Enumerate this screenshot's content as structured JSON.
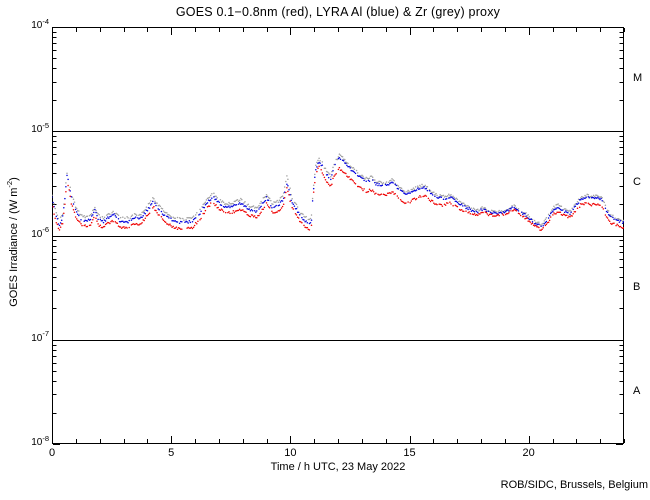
{
  "chart_data": {
    "type": "scatter",
    "title": "GOES 0.1−0.8nm (red), LYRA Al (blue) & Zr (grey) proxy",
    "xlabel": "Time / h UTC, 23 May 2022",
    "ylabel": "GOES Irradiance / (W m^-2)",
    "ylabel_parts": {
      "pre": "GOES Irradiance / (W m",
      "sup": "-2",
      "post": ")"
    },
    "credit": "ROB/SIDC, Brussels, Belgium",
    "x_range": [
      0,
      24
    ],
    "x_major_ticks": [
      0,
      5,
      10,
      15,
      20
    ],
    "x_minor_step": 1,
    "y_scale": "log10",
    "y_range_exp": [
      -8,
      -4
    ],
    "y_ticks": [
      {
        "base": "10",
        "exp": "-4",
        "log": -4
      },
      {
        "base": "10",
        "exp": "-5",
        "log": -5
      },
      {
        "base": "10",
        "exp": "-6",
        "log": -6
      },
      {
        "base": "10",
        "exp": "-7",
        "log": -7
      },
      {
        "base": "10",
        "exp": "-8",
        "log": -8
      }
    ],
    "grid_hlines_log": [
      -5,
      -6,
      -7
    ],
    "flare_class_labels": [
      {
        "label": "M",
        "log_center": -4.5
      },
      {
        "label": "C",
        "log_center": -5.5
      },
      {
        "label": "B",
        "log_center": -6.5
      },
      {
        "label": "A",
        "log_center": -7.5
      }
    ],
    "values_unit": "1e-6 W m-2",
    "hours": [
      0,
      0.15,
      0.3,
      0.45,
      0.55,
      0.62,
      0.7,
      0.82,
      1.0,
      1.2,
      1.45,
      1.62,
      1.8,
      1.95,
      2.15,
      2.4,
      2.6,
      2.85,
      3.2,
      3.5,
      3.7,
      4.0,
      4.25,
      4.5,
      4.8,
      5.2,
      5.55,
      5.9,
      6.2,
      6.5,
      6.75,
      7.0,
      7.3,
      7.6,
      7.9,
      8.3,
      8.6,
      9.0,
      9.25,
      9.5,
      9.7,
      9.87,
      10.05,
      10.25,
      10.5,
      10.75,
      10.88,
      10.96,
      11.05,
      11.2,
      11.35,
      11.5,
      11.7,
      11.85,
      12.05,
      12.2,
      12.5,
      12.75,
      13.0,
      13.2,
      13.4,
      13.6,
      13.85,
      14.1,
      14.3,
      14.55,
      14.8,
      15.0,
      15.3,
      15.6,
      15.85,
      16.1,
      16.4,
      16.7,
      17.0,
      17.3,
      17.6,
      17.85,
      18.1,
      18.35,
      18.7,
      19.0,
      19.35,
      19.6,
      19.9,
      20.2,
      20.55,
      20.8,
      21.05,
      21.25,
      21.5,
      21.75,
      22.0,
      22.2,
      22.4,
      22.65,
      22.9,
      23.1,
      23.25,
      23.45,
      23.7,
      24.0
    ],
    "series": [
      {
        "name": "LYRA Zr proxy",
        "color_name": "grey",
        "color": "#a0a0a0",
        "values": [
          2.5,
          1.75,
          1.38,
          1.63,
          2.6,
          4.05,
          3.5,
          2.45,
          1.88,
          1.58,
          1.5,
          1.57,
          1.88,
          1.55,
          1.48,
          1.62,
          1.7,
          1.5,
          1.47,
          1.6,
          1.57,
          1.9,
          2.3,
          1.9,
          1.62,
          1.47,
          1.43,
          1.5,
          1.75,
          2.22,
          2.58,
          2.22,
          2.0,
          2.06,
          2.22,
          1.93,
          1.85,
          2.5,
          2.02,
          2.14,
          2.45,
          3.85,
          2.38,
          1.96,
          1.58,
          1.44,
          1.42,
          2.8,
          4.5,
          5.55,
          4.95,
          4.2,
          3.7,
          4.9,
          5.9,
          5.55,
          4.7,
          4.15,
          3.72,
          3.5,
          3.65,
          3.28,
          3.18,
          3.28,
          3.45,
          2.92,
          2.65,
          2.7,
          2.9,
          3.06,
          2.74,
          2.47,
          2.36,
          2.47,
          2.2,
          1.98,
          1.82,
          1.74,
          1.86,
          1.71,
          1.69,
          1.71,
          1.95,
          1.76,
          1.61,
          1.4,
          1.27,
          1.52,
          1.85,
          2.0,
          1.79,
          1.7,
          2.04,
          2.34,
          2.44,
          2.37,
          2.44,
          2.24,
          1.83,
          1.55,
          1.46,
          1.38
        ]
      },
      {
        "name": "LYRA Al proxy",
        "color_name": "blue",
        "color": "#0000dd",
        "values": [
          2.3,
          1.6,
          1.26,
          1.5,
          2.4,
          3.75,
          3.2,
          2.25,
          1.72,
          1.45,
          1.38,
          1.45,
          1.75,
          1.42,
          1.36,
          1.5,
          1.58,
          1.38,
          1.35,
          1.48,
          1.45,
          1.75,
          2.1,
          1.75,
          1.5,
          1.36,
          1.32,
          1.38,
          1.62,
          2.05,
          2.36,
          2.05,
          1.85,
          1.9,
          2.05,
          1.78,
          1.7,
          2.3,
          1.85,
          1.95,
          2.2,
          3.25,
          2.15,
          1.8,
          1.45,
          1.32,
          1.3,
          2.6,
          4.2,
          5.15,
          4.6,
          3.9,
          3.45,
          4.6,
          5.5,
          5.2,
          4.4,
          3.9,
          3.5,
          3.3,
          3.45,
          3.1,
          3.0,
          3.1,
          3.25,
          2.75,
          2.5,
          2.55,
          2.75,
          2.9,
          2.6,
          2.35,
          2.25,
          2.36,
          2.1,
          1.9,
          1.75,
          1.68,
          1.8,
          1.65,
          1.63,
          1.65,
          1.88,
          1.7,
          1.55,
          1.35,
          1.22,
          1.45,
          1.75,
          1.87,
          1.7,
          1.63,
          1.95,
          2.25,
          2.35,
          2.28,
          2.35,
          2.15,
          1.75,
          1.48,
          1.4,
          1.32
        ]
      },
      {
        "name": "GOES 0.1-0.8nm",
        "color_name": "red",
        "color": "#ee0000",
        "values": [
          2.05,
          1.42,
          1.12,
          1.33,
          2.15,
          3.35,
          2.85,
          2.0,
          1.52,
          1.28,
          1.22,
          1.28,
          1.55,
          1.26,
          1.2,
          1.33,
          1.4,
          1.2,
          1.18,
          1.3,
          1.28,
          1.55,
          1.88,
          1.55,
          1.32,
          1.18,
          1.15,
          1.2,
          1.43,
          1.82,
          2.1,
          1.82,
          1.63,
          1.68,
          1.8,
          1.56,
          1.5,
          2.02,
          1.63,
          1.72,
          1.95,
          2.9,
          1.9,
          1.58,
          1.28,
          1.16,
          1.15,
          2.3,
          3.75,
          4.6,
          4.0,
          3.35,
          2.95,
          3.8,
          4.4,
          4.15,
          3.5,
          3.1,
          2.8,
          2.65,
          2.75,
          2.5,
          2.42,
          2.5,
          2.65,
          2.25,
          2.05,
          2.1,
          2.28,
          2.45,
          2.2,
          2.0,
          1.95,
          2.06,
          1.86,
          1.72,
          1.62,
          1.58,
          1.7,
          1.57,
          1.56,
          1.58,
          1.78,
          1.61,
          1.46,
          1.26,
          1.13,
          1.34,
          1.6,
          1.7,
          1.56,
          1.5,
          1.75,
          1.98,
          2.05,
          1.97,
          2.0,
          1.82,
          1.55,
          1.32,
          1.26,
          1.19
        ]
      }
    ]
  }
}
